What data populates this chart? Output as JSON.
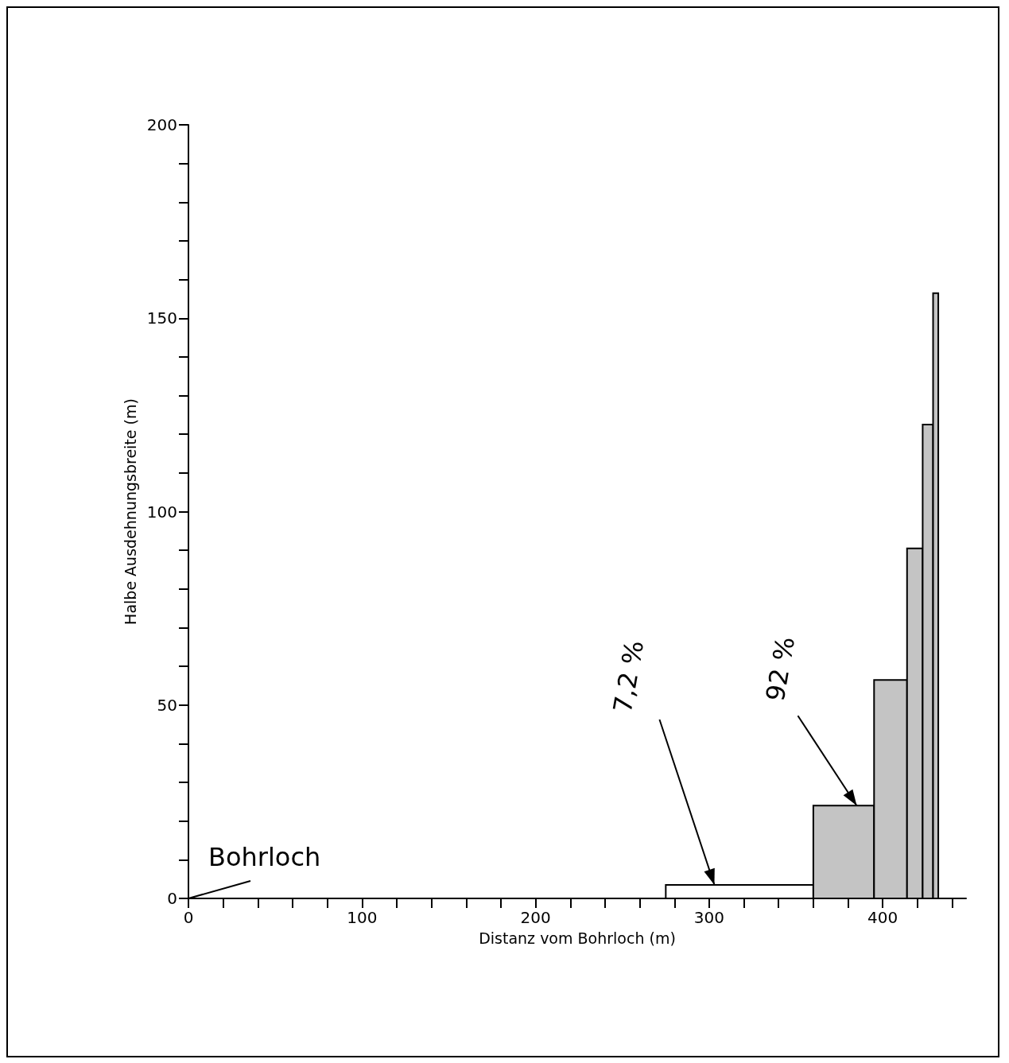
{
  "chart_data": {
    "type": "histogram",
    "xlabel": "Distanz vom Bohrloch (m)",
    "ylabel": "Halbe Ausdehnungsbreite (m)",
    "bins": [
      275,
      360,
      395,
      414,
      423,
      429,
      432
    ],
    "values": [
      3.5,
      24,
      56.5,
      90.5,
      122.5,
      156.5
    ],
    "colors": [
      "#ffffff",
      "#c4c4c4",
      "#c4c4c4",
      "#c4c4c4",
      "#c4c4c4",
      "#c4c4c4"
    ],
    "xlim": [
      0,
      448
    ],
    "xticks": [
      0,
      {
        "value": 20,
        "label": null
      },
      {
        "value": 40,
        "label": null
      },
      {
        "value": 60,
        "label": null
      },
      {
        "value": 80,
        "label": null
      },
      100,
      {
        "value": 120,
        "label": null
      },
      {
        "value": 140,
        "label": null
      },
      {
        "value": 160,
        "label": null
      },
      {
        "value": 180,
        "label": null
      },
      200,
      {
        "value": 220,
        "label": null
      },
      {
        "value": 240,
        "label": null
      },
      {
        "value": 260,
        "label": null
      },
      {
        "value": 280,
        "label": null
      },
      300,
      {
        "value": 320,
        "label": null
      },
      {
        "value": 340,
        "label": null
      },
      {
        "value": 360,
        "label": null
      },
      {
        "value": 380,
        "label": null
      },
      400,
      {
        "value": 420,
        "label": null
      },
      {
        "value": 440,
        "label": null
      }
    ],
    "ylim": [
      0,
      200
    ],
    "yticks": [
      0,
      {
        "value": 10,
        "label": null
      },
      {
        "value": 20,
        "label": null
      },
      {
        "value": 30,
        "label": null
      },
      {
        "value": 40,
        "label": null
      },
      50,
      {
        "value": 60,
        "label": null
      },
      {
        "value": 70,
        "label": null
      },
      {
        "value": 80,
        "label": null
      },
      {
        "value": 90,
        "label": null
      },
      100,
      {
        "value": 110,
        "label": null
      },
      {
        "value": 120,
        "label": null
      },
      {
        "value": 130,
        "label": null
      },
      {
        "value": 140,
        "label": null
      },
      150,
      {
        "value": 160,
        "label": null
      },
      {
        "value": 170,
        "label": null
      },
      {
        "value": 180,
        "label": null
      },
      {
        "value": 190,
        "label": null
      },
      200
    ],
    "grid": false,
    "annotations": [
      "Bohrloch",
      {
        "text": "7,2 %",
        "x": 303,
        "y": 3.5
      },
      {
        "text": "92 %",
        "x": 385,
        "y": 24
      }
    ]
  }
}
